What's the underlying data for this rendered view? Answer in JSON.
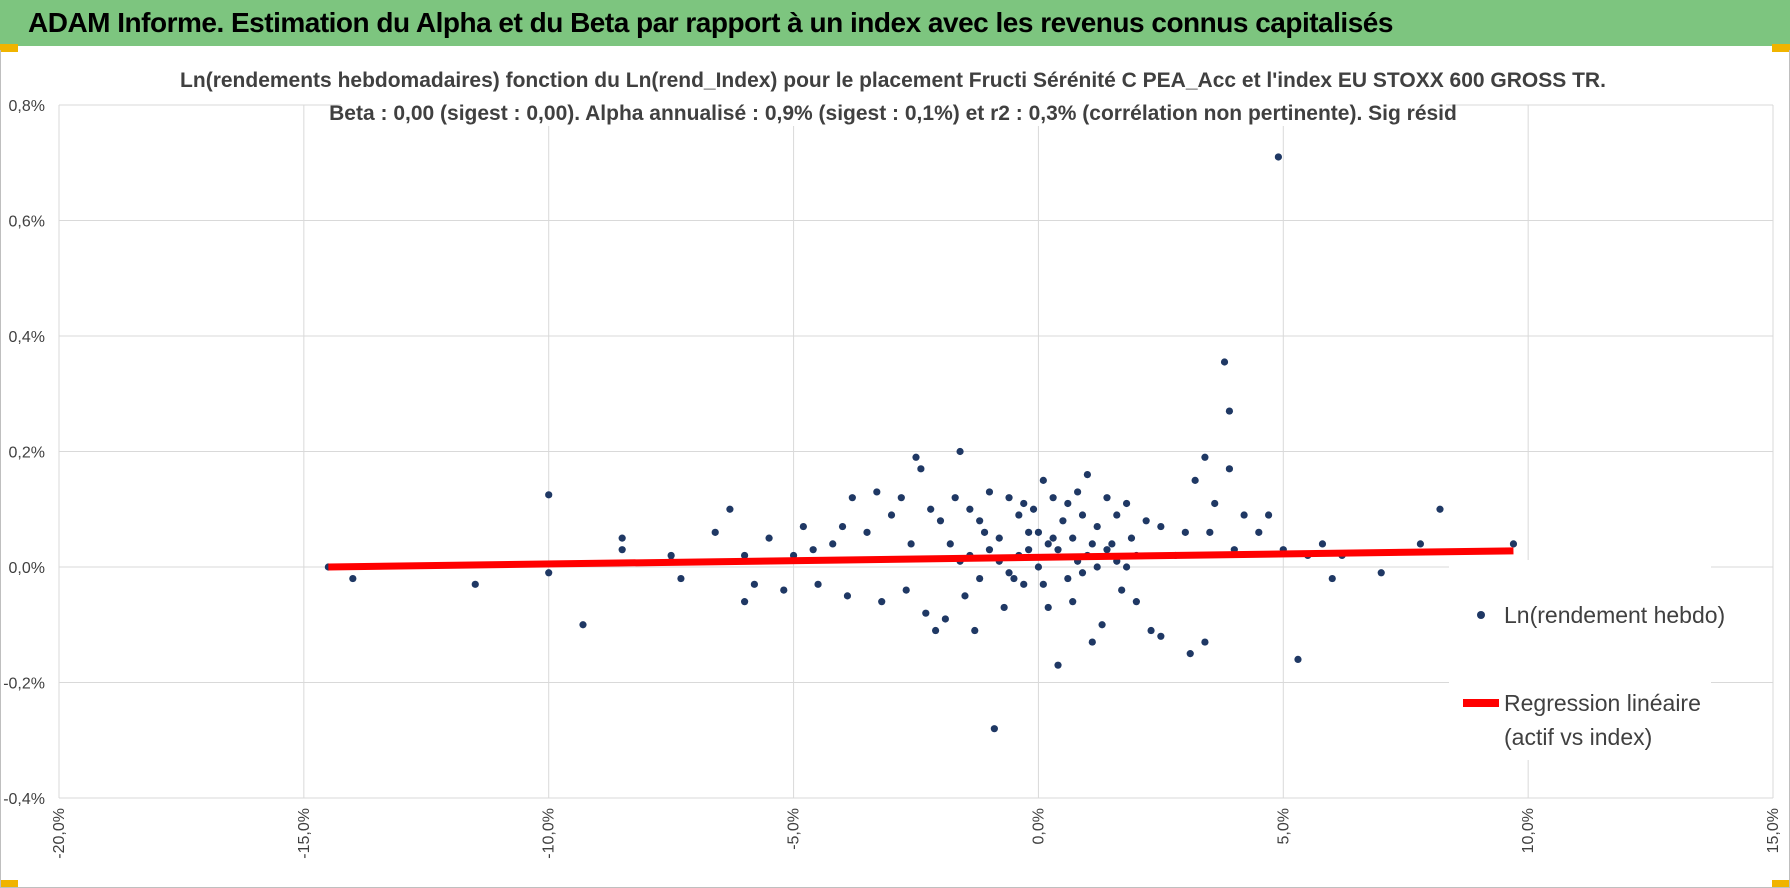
{
  "header": {
    "title": "ADAM Informe. Estimation du Alpha et du Beta par rapport à un index avec les revenus connus capitalisés"
  },
  "colors": {
    "title_bar": "#7dc57f",
    "corner_accent": "#f0b400",
    "points": "#1f3864",
    "regression": "#ff0000",
    "grid": "#d9d9d9"
  },
  "chart_data": {
    "type": "scatter",
    "title_lines": [
      "Ln(rendements hebdomadaires) fonction du Ln(rend_Index) pour le placement Fructi Sérénité C PEA_Acc et l'index EU STOXX 600 GROSS TR.",
      "Beta : 0,00 (sigest : 0,00).  Alpha annualisé : 0,9% (sigest : 0,1%) et r2 : 0,3% (corrélation non pertinente). Sig résid"
    ],
    "xlim": [
      -0.2,
      0.15
    ],
    "ylim": [
      -0.004,
      0.008
    ],
    "x_tick_labels": [
      "-20,0%",
      "-15,0%",
      "-10,0%",
      "-5,0%",
      "0,0%",
      "5,0%",
      "10,0%",
      "15,0%"
    ],
    "y_tick_labels": [
      "-0,4%",
      "-0,2%",
      "0,0%",
      "0,2%",
      "0,4%",
      "0,6%",
      "0,8%"
    ],
    "grid": true,
    "legend_position": "right",
    "series": [
      {
        "name": "Ln(rendement hebdo)",
        "kind": "points",
        "points": [
          [
            -0.145,
            0.0
          ],
          [
            -0.14,
            -0.0002
          ],
          [
            -0.115,
            -0.0003
          ],
          [
            -0.1,
            0.00125
          ],
          [
            -0.1,
            -0.0001
          ],
          [
            -0.093,
            -0.001
          ],
          [
            -0.085,
            0.0005
          ],
          [
            -0.085,
            0.0003
          ],
          [
            -0.075,
            0.0001
          ],
          [
            -0.075,
            0.0002
          ],
          [
            -0.073,
            -0.0002
          ],
          [
            -0.066,
            0.0006
          ],
          [
            -0.063,
            0.001
          ],
          [
            -0.06,
            -0.0006
          ],
          [
            -0.06,
            0.0002
          ],
          [
            -0.058,
            -0.0003
          ],
          [
            -0.055,
            0.0005
          ],
          [
            -0.052,
            -0.0004
          ],
          [
            -0.05,
            0.0002
          ],
          [
            -0.048,
            0.0007
          ],
          [
            -0.046,
            0.0003
          ],
          [
            -0.045,
            -0.0003
          ],
          [
            -0.042,
            0.0004
          ],
          [
            -0.04,
            0.0007
          ],
          [
            -0.039,
            -0.0005
          ],
          [
            -0.038,
            0.0012
          ],
          [
            -0.035,
            0.0006
          ],
          [
            -0.033,
            0.0013
          ],
          [
            -0.032,
            -0.0006
          ],
          [
            -0.03,
            0.0009
          ],
          [
            -0.028,
            0.0012
          ],
          [
            -0.027,
            -0.0004
          ],
          [
            -0.026,
            0.0004
          ],
          [
            -0.025,
            0.0019
          ],
          [
            -0.024,
            0.0017
          ],
          [
            -0.023,
            -0.0008
          ],
          [
            -0.022,
            0.001
          ],
          [
            -0.021,
            -0.0011
          ],
          [
            -0.02,
            0.0008
          ],
          [
            -0.019,
            -0.0009
          ],
          [
            -0.018,
            0.0004
          ],
          [
            -0.017,
            0.0012
          ],
          [
            -0.016,
            0.002
          ],
          [
            -0.015,
            -0.0005
          ],
          [
            -0.014,
            0.001
          ],
          [
            -0.013,
            -0.0011
          ],
          [
            -0.012,
            0.0008
          ],
          [
            -0.011,
            0.0006
          ],
          [
            -0.01,
            0.0013
          ],
          [
            -0.009,
            -0.0028
          ],
          [
            -0.008,
            0.0005
          ],
          [
            -0.007,
            -0.0007
          ],
          [
            -0.006,
            0.0012
          ],
          [
            -0.005,
            -0.0002
          ],
          [
            -0.004,
            0.0009
          ],
          [
            -0.003,
            0.0011
          ],
          [
            -0.002,
            0.0003
          ],
          [
            -0.001,
            0.001
          ],
          [
            0.0,
            0.0006
          ],
          [
            0.001,
            0.0015
          ],
          [
            0.002,
            -0.0007
          ],
          [
            0.003,
            0.0012
          ],
          [
            0.004,
            -0.0017
          ],
          [
            0.005,
            0.0008
          ],
          [
            0.006,
            0.0011
          ],
          [
            0.007,
            -0.0006
          ],
          [
            0.008,
            0.0013
          ],
          [
            0.009,
            0.0009
          ],
          [
            0.01,
            0.0016
          ],
          [
            0.011,
            -0.0013
          ],
          [
            0.012,
            0.0007
          ],
          [
            0.013,
            -0.001
          ],
          [
            0.014,
            0.0012
          ],
          [
            0.015,
            0.0004
          ],
          [
            0.016,
            0.0009
          ],
          [
            0.017,
            -0.0004
          ],
          [
            0.018,
            0.0011
          ],
          [
            0.019,
            0.0005
          ],
          [
            0.02,
            -0.0006
          ],
          [
            0.022,
            0.0008
          ],
          [
            0.023,
            -0.0011
          ],
          [
            0.025,
            0.0007
          ],
          [
            0.025,
            -0.0012
          ],
          [
            0.028,
            0.0002
          ],
          [
            0.03,
            0.0006
          ],
          [
            0.031,
            -0.0015
          ],
          [
            0.032,
            0.0015
          ],
          [
            0.034,
            -0.0013
          ],
          [
            0.034,
            0.0019
          ],
          [
            0.035,
            0.0006
          ],
          [
            0.036,
            0.0011
          ],
          [
            0.038,
            0.00355
          ],
          [
            0.039,
            0.0027
          ],
          [
            0.039,
            0.0017
          ],
          [
            0.04,
            0.0003
          ],
          [
            0.042,
            0.0009
          ],
          [
            0.045,
            0.0006
          ],
          [
            0.047,
            0.0009
          ],
          [
            0.049,
            0.0071
          ],
          [
            0.05,
            0.0003
          ],
          [
            0.053,
            -0.0016
          ],
          [
            0.055,
            0.0002
          ],
          [
            0.058,
            0.0004
          ],
          [
            0.06,
            -0.0002
          ],
          [
            0.062,
            0.0002
          ],
          [
            0.07,
            -0.0001
          ],
          [
            0.078,
            0.0004
          ],
          [
            0.082,
            0.001
          ],
          [
            0.097,
            0.0004
          ],
          [
            -0.008,
            0.0001
          ],
          [
            -0.004,
            0.0002
          ],
          [
            0.0,
            0.0
          ],
          [
            0.004,
            0.0003
          ],
          [
            0.008,
            0.0001
          ],
          [
            -0.006,
            -0.0001
          ],
          [
            0.002,
            0.0004
          ],
          [
            0.006,
            -0.0002
          ],
          [
            0.01,
            0.0002
          ],
          [
            -0.01,
            0.0003
          ],
          [
            0.012,
            0.0
          ],
          [
            0.014,
            0.0003
          ],
          [
            -0.012,
            -0.0002
          ],
          [
            0.016,
            0.0001
          ],
          [
            -0.014,
            0.0002
          ],
          [
            0.018,
            0.0
          ],
          [
            0.02,
            0.0002
          ],
          [
            -0.016,
            0.0001
          ],
          [
            0.003,
            0.0005
          ],
          [
            -0.002,
            0.0006
          ],
          [
            0.001,
            -0.0003
          ],
          [
            0.007,
            0.0005
          ],
          [
            -0.003,
            -0.0003
          ],
          [
            0.009,
            -0.0001
          ],
          [
            0.011,
            0.0004
          ]
        ]
      },
      {
        "name": "Regression linéaire (actif vs index)",
        "kind": "line",
        "points": [
          [
            -0.145,
            0.0
          ],
          [
            0.097,
            0.00028
          ]
        ]
      }
    ],
    "legend": [
      "Ln(rendement hebdo)",
      "Regression linéaire",
      "(actif vs index)"
    ]
  }
}
